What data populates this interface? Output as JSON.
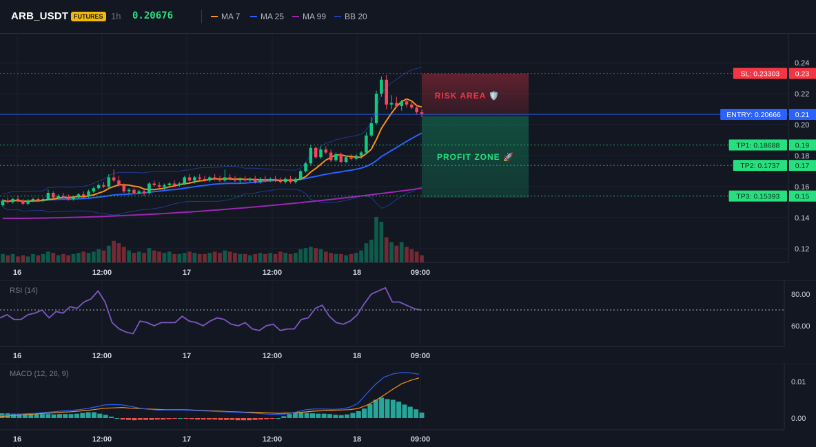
{
  "header": {
    "symbol": "ARB_USDT",
    "badge": "FUTURES",
    "timeframe": "1h",
    "last_price": "0.20676",
    "legend": [
      {
        "name": "MA 7",
        "color": "#f7931a"
      },
      {
        "name": "MA 25",
        "color": "#2962ff"
      },
      {
        "name": "MA 99",
        "color": "#9c27b0"
      },
      {
        "name": "BB 20",
        "color": "#1e40af"
      }
    ]
  },
  "colors": {
    "up": "#0ecb81",
    "down": "#f6465d",
    "sl": "#f23645",
    "entry": "#2962ff",
    "tp": "#26e07f"
  },
  "chart_data": [
    {
      "type": "candlestick",
      "y_ticks": [
        "0.24",
        "0.22",
        "0.20",
        "0.18",
        "0.16",
        "0.14",
        "0.12"
      ],
      "ylim": [
        0.11,
        0.245
      ],
      "x_ticks": [
        "16",
        "12:00",
        "17",
        "12:00",
        "18",
        "09:00"
      ],
      "levels": [
        {
          "label": "SL: 0.23303",
          "axis": "0.23",
          "value": 0.23303,
          "color": "#f23645"
        },
        {
          "label": "ENTRY: 0.20666",
          "axis": "0.21",
          "value": 0.20666,
          "color": "#2962ff"
        },
        {
          "label": "TP1: 0.18688",
          "axis": "0.19",
          "value": 0.18688,
          "color": "#26e07f"
        },
        {
          "label": "TP2: 0.1737",
          "axis": "0.17",
          "value": 0.1737,
          "color": "#26e07f"
        },
        {
          "label": "TP3: 0.15393",
          "axis": "0.15",
          "value": 0.15393,
          "color": "#26e07f"
        }
      ],
      "zones": {
        "risk": "RISK AREA 🛡️",
        "profit": "PROFIT ZONE 🚀"
      },
      "candles": [
        [
          0.148,
          0.152,
          0.147,
          0.151
        ],
        [
          0.151,
          0.153,
          0.149,
          0.15
        ],
        [
          0.15,
          0.153,
          0.149,
          0.152
        ],
        [
          0.152,
          0.154,
          0.15,
          0.151
        ],
        [
          0.151,
          0.152,
          0.148,
          0.149
        ],
        [
          0.149,
          0.152,
          0.148,
          0.151
        ],
        [
          0.151,
          0.153,
          0.15,
          0.152
        ],
        [
          0.152,
          0.153,
          0.15,
          0.151
        ],
        [
          0.151,
          0.153,
          0.15,
          0.152
        ],
        [
          0.152,
          0.158,
          0.151,
          0.156
        ],
        [
          0.156,
          0.157,
          0.152,
          0.153
        ],
        [
          0.153,
          0.155,
          0.152,
          0.154
        ],
        [
          0.154,
          0.156,
          0.153,
          0.153
        ],
        [
          0.153,
          0.155,
          0.151,
          0.152
        ],
        [
          0.152,
          0.154,
          0.151,
          0.153
        ],
        [
          0.153,
          0.156,
          0.152,
          0.155
        ],
        [
          0.155,
          0.157,
          0.153,
          0.154
        ],
        [
          0.154,
          0.158,
          0.153,
          0.157
        ],
        [
          0.157,
          0.16,
          0.156,
          0.159
        ],
        [
          0.159,
          0.162,
          0.158,
          0.161
        ],
        [
          0.161,
          0.163,
          0.159,
          0.16
        ],
        [
          0.16,
          0.168,
          0.159,
          0.166
        ],
        [
          0.166,
          0.171,
          0.163,
          0.164
        ],
        [
          0.164,
          0.167,
          0.16,
          0.161
        ],
        [
          0.161,
          0.162,
          0.156,
          0.157
        ],
        [
          0.157,
          0.159,
          0.155,
          0.158
        ],
        [
          0.158,
          0.159,
          0.155,
          0.156
        ],
        [
          0.156,
          0.158,
          0.155,
          0.157
        ],
        [
          0.157,
          0.158,
          0.154,
          0.156
        ],
        [
          0.156,
          0.163,
          0.155,
          0.162
        ],
        [
          0.162,
          0.164,
          0.16,
          0.161
        ],
        [
          0.161,
          0.163,
          0.159,
          0.16
        ],
        [
          0.16,
          0.162,
          0.158,
          0.161
        ],
        [
          0.161,
          0.163,
          0.16,
          0.162
        ],
        [
          0.162,
          0.164,
          0.16,
          0.161
        ],
        [
          0.161,
          0.163,
          0.16,
          0.162
        ],
        [
          0.162,
          0.167,
          0.161,
          0.166
        ],
        [
          0.166,
          0.168,
          0.163,
          0.164
        ],
        [
          0.164,
          0.167,
          0.162,
          0.166
        ],
        [
          0.166,
          0.168,
          0.164,
          0.165
        ],
        [
          0.165,
          0.167,
          0.163,
          0.164
        ],
        [
          0.164,
          0.167,
          0.163,
          0.166
        ],
        [
          0.166,
          0.168,
          0.164,
          0.165
        ],
        [
          0.165,
          0.167,
          0.163,
          0.164
        ],
        [
          0.164,
          0.171,
          0.163,
          0.166
        ],
        [
          0.166,
          0.168,
          0.164,
          0.165
        ],
        [
          0.165,
          0.167,
          0.163,
          0.164
        ],
        [
          0.164,
          0.166,
          0.162,
          0.165
        ],
        [
          0.165,
          0.167,
          0.163,
          0.164
        ],
        [
          0.164,
          0.166,
          0.163,
          0.165
        ],
        [
          0.165,
          0.167,
          0.162,
          0.163
        ],
        [
          0.163,
          0.166,
          0.162,
          0.165
        ],
        [
          0.165,
          0.167,
          0.163,
          0.164
        ],
        [
          0.164,
          0.166,
          0.163,
          0.165
        ],
        [
          0.165,
          0.167,
          0.163,
          0.164
        ],
        [
          0.164,
          0.166,
          0.162,
          0.163
        ],
        [
          0.163,
          0.166,
          0.162,
          0.165
        ],
        [
          0.165,
          0.167,
          0.162,
          0.163
        ],
        [
          0.163,
          0.166,
          0.162,
          0.165
        ],
        [
          0.165,
          0.171,
          0.164,
          0.17
        ],
        [
          0.17,
          0.176,
          0.169,
          0.175
        ],
        [
          0.175,
          0.187,
          0.174,
          0.185
        ],
        [
          0.185,
          0.186,
          0.178,
          0.179
        ],
        [
          0.179,
          0.186,
          0.178,
          0.184
        ],
        [
          0.184,
          0.186,
          0.181,
          0.182
        ],
        [
          0.182,
          0.184,
          0.176,
          0.177
        ],
        [
          0.177,
          0.182,
          0.176,
          0.181
        ],
        [
          0.181,
          0.182,
          0.175,
          0.176
        ],
        [
          0.176,
          0.18,
          0.175,
          0.179
        ],
        [
          0.179,
          0.181,
          0.177,
          0.178
        ],
        [
          0.178,
          0.181,
          0.177,
          0.18
        ],
        [
          0.18,
          0.183,
          0.178,
          0.182
        ],
        [
          0.182,
          0.195,
          0.181,
          0.193
        ],
        [
          0.193,
          0.205,
          0.192,
          0.201
        ],
        [
          0.201,
          0.222,
          0.2,
          0.22
        ],
        [
          0.22,
          0.231,
          0.218,
          0.229
        ],
        [
          0.229,
          0.232,
          0.21,
          0.213
        ],
        [
          0.213,
          0.219,
          0.21,
          0.214
        ],
        [
          0.214,
          0.218,
          0.211,
          0.212
        ],
        [
          0.212,
          0.216,
          0.209,
          0.215
        ],
        [
          0.215,
          0.217,
          0.211,
          0.213
        ],
        [
          0.213,
          0.216,
          0.21,
          0.211
        ],
        [
          0.211,
          0.213,
          0.207,
          0.208
        ],
        [
          0.208,
          0.21,
          0.205,
          0.207
        ]
      ],
      "volume": [
        7,
        6,
        7,
        5,
        6,
        5,
        7,
        6,
        7,
        9,
        8,
        6,
        7,
        6,
        7,
        8,
        9,
        8,
        9,
        11,
        10,
        14,
        18,
        16,
        13,
        10,
        8,
        9,
        8,
        12,
        10,
        9,
        8,
        9,
        7,
        7,
        8,
        9,
        8,
        7,
        7,
        8,
        9,
        8,
        10,
        9,
        8,
        7,
        7,
        6,
        7,
        8,
        7,
        8,
        7,
        9,
        8,
        7,
        8,
        11,
        12,
        13,
        12,
        11,
        9,
        8,
        7,
        7,
        6,
        7,
        8,
        10,
        16,
        19,
        38,
        34,
        21,
        17,
        14,
        17,
        13,
        11,
        9,
        6
      ]
    },
    {
      "type": "line",
      "title": "RSI (14)",
      "y_ticks": [
        "80.00",
        "60.00"
      ],
      "ylim": [
        52,
        88
      ],
      "values": [
        65,
        67,
        64,
        64,
        67,
        68,
        70,
        65,
        69,
        68,
        72,
        71,
        75,
        77,
        82,
        75,
        62,
        58,
        56,
        55,
        63,
        62,
        60,
        62,
        62,
        62,
        66,
        63,
        62,
        60,
        63,
        65,
        64,
        61,
        60,
        62,
        58,
        57,
        60,
        61,
        57,
        58,
        58,
        64,
        65,
        71,
        73,
        66,
        62,
        61,
        63,
        67,
        74,
        80,
        82,
        84,
        75,
        75,
        73,
        71,
        70
      ],
      "overbought": 70,
      "x_ticks": [
        "16",
        "12:00",
        "17",
        "12:00",
        "18",
        "09:00"
      ]
    },
    {
      "type": "line",
      "title": "MACD (12, 26, 9)",
      "y_ticks": [
        "0.01",
        "0.00"
      ],
      "ylim": [
        -0.003,
        0.014
      ],
      "macd": [
        0.0006,
        0.0008,
        0.001,
        0.0012,
        0.0013,
        0.0015,
        0.0017,
        0.0019,
        0.0021,
        0.0023,
        0.0026,
        0.0031,
        0.0036,
        0.0037,
        0.0036,
        0.0032,
        0.0027,
        0.0024,
        0.0022,
        0.0022,
        0.0022,
        0.0022,
        0.0021,
        0.002,
        0.0019,
        0.0018,
        0.0017,
        0.0016,
        0.0015,
        0.0014,
        0.0012,
        0.001,
        0.001,
        0.0012,
        0.0017,
        0.0023,
        0.0025,
        0.0025,
        0.0024,
        0.0025,
        0.0029,
        0.004,
        0.0067,
        0.0092,
        0.0112,
        0.0121,
        0.0125,
        0.0124,
        0.012
      ],
      "signal": [
        0.0004,
        0.0006,
        0.0008,
        0.001,
        0.0011,
        0.0013,
        0.0014,
        0.0016,
        0.0017,
        0.0019,
        0.0021,
        0.0024,
        0.0027,
        0.0028,
        0.0029,
        0.0027,
        0.0026,
        0.0025,
        0.0024,
        0.0023,
        0.0023,
        0.0023,
        0.0022,
        0.0021,
        0.002,
        0.0019,
        0.0018,
        0.0017,
        0.0016,
        0.0016,
        0.0015,
        0.0014,
        0.0013,
        0.0014,
        0.0015,
        0.0017,
        0.0019,
        0.002,
        0.0021,
        0.0022,
        0.0023,
        0.0026,
        0.0035,
        0.0048,
        0.0063,
        0.0079,
        0.0094,
        0.0103,
        0.011
      ],
      "histogram": [
        0.0013,
        0.0013,
        0.0012,
        0.0012,
        0.0012,
        0.0011,
        0.0011,
        0.0011,
        0.0011,
        0.001,
        0.0011,
        0.0011,
        0.0011,
        0.0012,
        0.0014,
        0.0016,
        0.0016,
        0.0012,
        0.0009,
        0.0004,
        0.0,
        -0.0004,
        -0.0005,
        -0.0006,
        -0.0005,
        -0.0005,
        -0.0005,
        -0.0004,
        -0.0004,
        -0.0003,
        -0.0002,
        0.0,
        -0.0002,
        -0.0003,
        -0.0004,
        -0.0004,
        -0.0004,
        -0.0004,
        -0.0005,
        -0.0005,
        -0.0005,
        -0.0006,
        -0.0006,
        -0.0006,
        -0.0005,
        -0.0004,
        -0.0003,
        -0.0001,
        0.0,
        0.0005,
        0.0011,
        0.0014,
        0.0015,
        0.0014,
        0.0013,
        0.0012,
        0.0012,
        0.0011,
        0.0009,
        0.0008,
        0.001,
        0.0014,
        0.0019,
        0.0026,
        0.0038,
        0.005,
        0.0056,
        0.0052,
        0.005,
        0.0045,
        0.0037,
        0.0031,
        0.0024,
        0.0015
      ],
      "x_ticks": [
        "16",
        "12:00",
        "17",
        "12:00",
        "18",
        "09:00"
      ]
    }
  ]
}
